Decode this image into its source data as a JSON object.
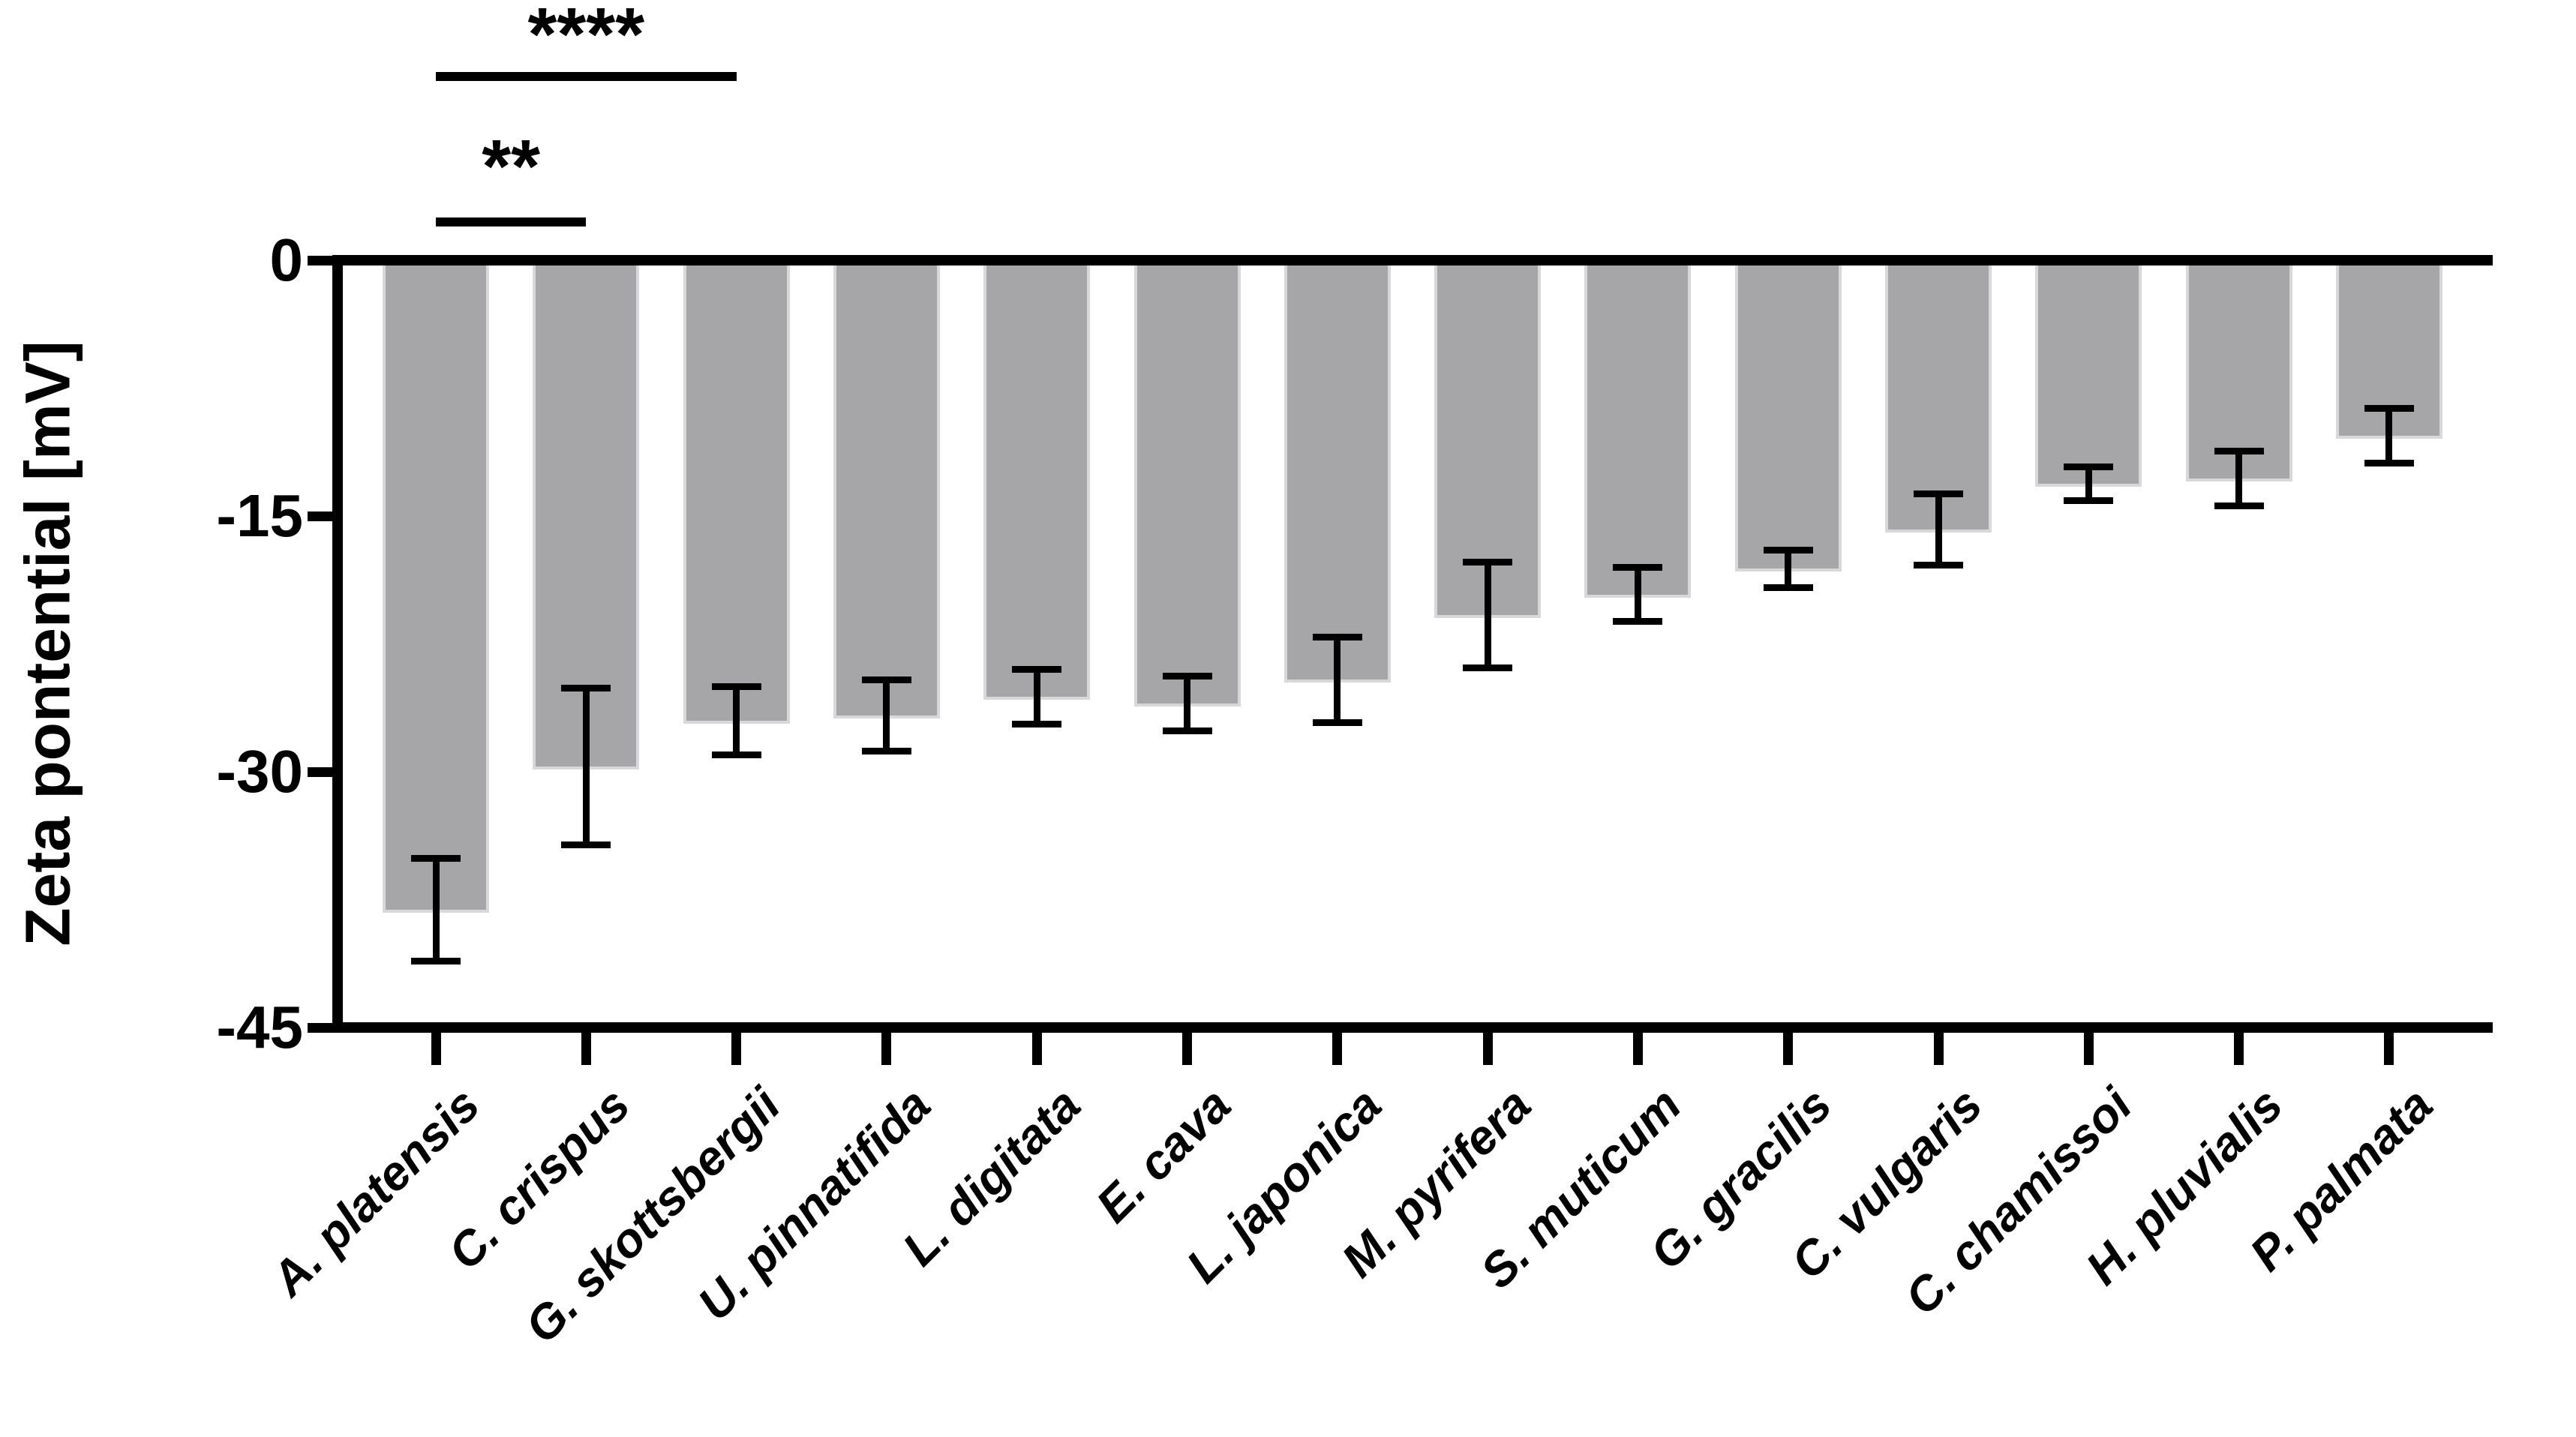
{
  "chart_data": {
    "type": "bar",
    "title": "",
    "ylabel": "Zeta pontential [mV]",
    "xlabel": "",
    "ylim": [
      -45,
      0
    ],
    "yticks": [
      0,
      -15,
      -30,
      -45
    ],
    "ytick_labels": [
      "0",
      "-15",
      "-30",
      "-45"
    ],
    "grid": false,
    "legend": false,
    "bar_color": "#a6a6a8",
    "bar_edge_color": "#d8d8db",
    "error_color": "#000000",
    "categories": [
      "A. platensis",
      "C. crispus",
      "G. skottsbergii",
      "U. pinnatifida",
      "L. digitata",
      "E. cava",
      "L. japonica",
      "M. pyrifera",
      "S. muticum",
      "G. gracilis",
      "C. vulgaris",
      "C. chamissoi",
      "H. pluvialis",
      "P. palmata"
    ],
    "values": [
      -38.1,
      -29.7,
      -27.0,
      -26.7,
      -25.6,
      -26.0,
      -24.6,
      -20.8,
      -19.6,
      -18.1,
      -15.8,
      -13.1,
      -12.8,
      -10.3
    ],
    "errors": [
      3.0,
      4.6,
      2.0,
      2.1,
      1.6,
      1.6,
      2.5,
      3.1,
      1.6,
      1.1,
      2.1,
      1.0,
      1.6,
      1.6
    ],
    "significance": [
      {
        "label": "****",
        "from": 0,
        "to": 2
      },
      {
        "label": "**",
        "from": 0,
        "to": 1
      }
    ]
  }
}
